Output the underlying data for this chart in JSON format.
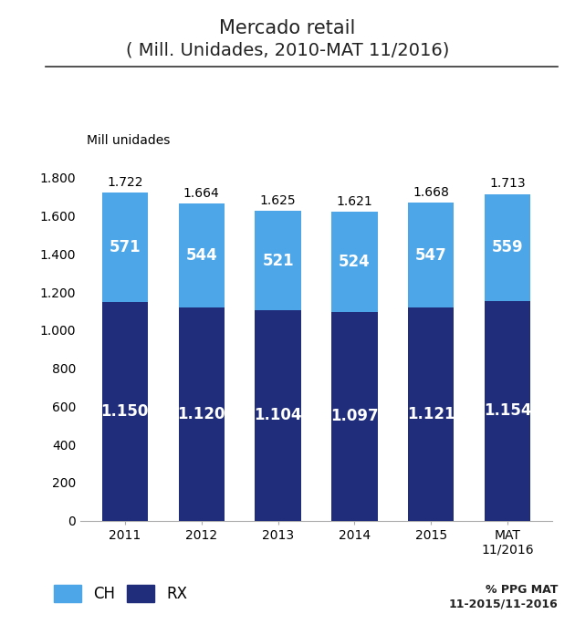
{
  "title_line1": "Mercado retail",
  "title_line2": "( Mill. Unidades, 2010-MAT 11/2016)",
  "ylabel": "Mill unidades",
  "categories": [
    "2011",
    "2012",
    "2013",
    "2014",
    "2015",
    "MAT\n11/2016"
  ],
  "rx_values": [
    1150,
    1120,
    1104,
    1097,
    1121,
    1154
  ],
  "ch_values": [
    571,
    544,
    521,
    524,
    547,
    559
  ],
  "totals": [
    "1.722",
    "1.664",
    "1.625",
    "1.621",
    "1.668",
    "1.713"
  ],
  "rx_labels": [
    "1.150",
    "1.120",
    "1.104",
    "1.097",
    "1.121",
    "1.154"
  ],
  "ch_labels": [
    "571",
    "544",
    "521",
    "524",
    "547",
    "559"
  ],
  "color_ch": "#4da6e8",
  "color_rx": "#1f2d7b",
  "ylim": [
    0,
    1900
  ],
  "ytick_values": [
    0,
    200,
    400,
    600,
    800,
    1000,
    1200,
    1400,
    1600,
    1800
  ],
  "ytick_labels": [
    "0",
    "200",
    "400",
    "600",
    "800",
    "1.000",
    "1.200",
    "1.400",
    "1.600",
    "1.800"
  ],
  "legend_ch": "CH",
  "legend_rx": "RX",
  "footnote": "% PPG MAT\n11-2015/11-2016",
  "title_fontsize": 15,
  "label_fontsize": 12,
  "tick_fontsize": 10,
  "total_fontsize": 10
}
